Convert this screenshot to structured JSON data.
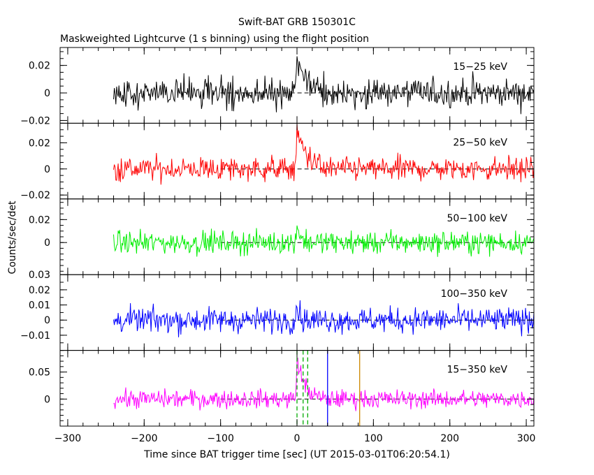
{
  "title": "Swift-BAT GRB 150301C",
  "subtitle": "Maskweighted Lightcurve (1 s binning) using the flight position",
  "chart_data": {
    "type": "line",
    "title": "Swift-BAT GRB 150301C",
    "subtitle": "Maskweighted Lightcurve (1 s binning) using the flight position",
    "xlabel": "Time since BAT trigger time [sec] (UT 2015-03-01T06:20:54.1)",
    "ylabel": "Counts/sec/det",
    "xlim": [
      -310,
      310
    ],
    "x_ticks": [
      -300,
      -200,
      -100,
      0,
      100,
      200,
      300
    ],
    "data_range": [
      -240,
      310
    ],
    "grid": false,
    "panels": [
      {
        "name": "15-25 keV",
        "color": "#000000",
        "ylim": [
          -0.022,
          0.033
        ],
        "y_ticks": [
          {
            "v": 0.02,
            "t": "0.02"
          },
          {
            "v": 0,
            "t": "0"
          },
          {
            "v": -0.02,
            "t": "−0.02"
          }
        ],
        "noise": 0.0075,
        "peak": 0.025,
        "tail": 12
      },
      {
        "name": "25-50 keV",
        "color": "#ff0000",
        "ylim": [
          -0.023,
          0.035
        ],
        "y_ticks": [
          {
            "v": 0.02,
            "t": "0.02"
          },
          {
            "v": 0,
            "t": "0"
          },
          {
            "v": -0.02,
            "t": "−0.02"
          }
        ],
        "noise": 0.0065,
        "peak": 0.028,
        "tail": 14
      },
      {
        "name": "50-100 keV",
        "color": "#00ee00",
        "ylim": [
          -0.028,
          0.038
        ],
        "y_ticks": [
          {
            "v": 0.02,
            "t": "0.02"
          },
          {
            "v": 0,
            "t": "0"
          }
        ],
        "noise": 0.0068,
        "peak": 0.018,
        "tail": 4
      },
      {
        "name": "100-350 keV",
        "color": "#0000ff",
        "ylim": [
          -0.02,
          0.03
        ],
        "y_ticks": [
          {
            "v": 0.03,
            "t": "0.03"
          },
          {
            "v": 0.02,
            "t": "0.02"
          },
          {
            "v": 0.01,
            "t": "0.01"
          },
          {
            "v": 0,
            "t": "0"
          },
          {
            "v": -0.01,
            "t": "−0.01"
          }
        ],
        "noise": 0.0058,
        "peak": 0.012,
        "tail": 3
      },
      {
        "name": "15-350 keV",
        "color": "#ff00ff",
        "ylim": [
          -0.05,
          0.09
        ],
        "y_ticks": [
          {
            "v": 0.05,
            "t": "0.05"
          },
          {
            "v": 0,
            "t": "0"
          }
        ],
        "noise": 0.012,
        "peak": 0.075,
        "tail": 10
      }
    ],
    "markers": [
      {
        "x": 0,
        "color": "#00aa00",
        "style": "dashed"
      },
      {
        "x": 8,
        "color": "#00aa00",
        "style": "dashed"
      },
      {
        "x": 14,
        "color": "#00aa00",
        "style": "dashed"
      },
      {
        "x": 40,
        "color": "#0000ff",
        "style": "solid"
      },
      {
        "x": 82,
        "color": "#cc8800",
        "style": "solid"
      }
    ]
  }
}
